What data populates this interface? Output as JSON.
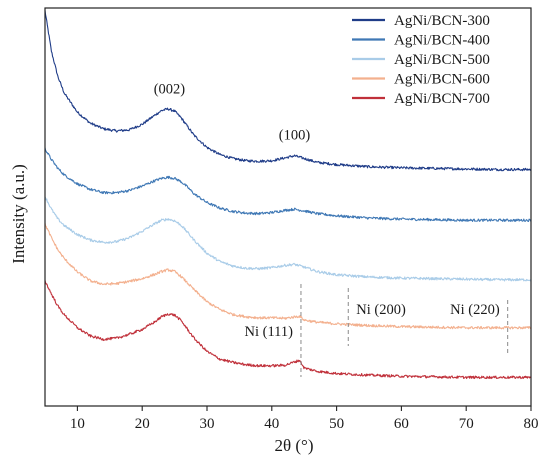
{
  "chart_data": {
    "type": "line",
    "xlabel": "2θ (°)",
    "ylabel": "Intensity (a.u.)",
    "xlim": [
      5,
      80
    ],
    "xticks": [
      10,
      20,
      30,
      40,
      50,
      60,
      70,
      80
    ],
    "y_tick_labels": false,
    "grid": false,
    "legend_position": "top-right",
    "stacked_offset": true,
    "series": [
      {
        "name": "AgNi/BCN-300",
        "color": "#1f3c88",
        "offset": 4.0,
        "x": [
          5,
          6,
          7,
          8,
          10,
          12,
          14,
          16,
          18,
          20,
          22,
          23,
          24,
          25,
          26,
          27,
          28,
          30,
          32,
          34,
          36,
          38,
          40,
          42,
          43.5,
          45,
          47,
          50,
          55,
          60,
          65,
          70,
          75,
          80
        ],
        "y": [
          2.92,
          2.18,
          1.72,
          1.42,
          1.08,
          0.88,
          0.78,
          0.74,
          0.76,
          0.86,
          1.03,
          1.11,
          1.14,
          1.1,
          0.98,
          0.82,
          0.66,
          0.44,
          0.31,
          0.24,
          0.2,
          0.19,
          0.2,
          0.25,
          0.29,
          0.24,
          0.17,
          0.13,
          0.09,
          0.07,
          0.06,
          0.05,
          0.04,
          0.04
        ]
      },
      {
        "name": "AgNi/BCN-400",
        "color": "#3f78b5",
        "offset": 3.0,
        "x": [
          5,
          6,
          7,
          8,
          10,
          12,
          14,
          16,
          18,
          20,
          22,
          23,
          24,
          25,
          26,
          27,
          28,
          30,
          32,
          34,
          36,
          38,
          40,
          42,
          43.5,
          45,
          47,
          50,
          55,
          60,
          65,
          70,
          75,
          80
        ],
        "y": [
          1.42,
          1.22,
          1.06,
          0.94,
          0.78,
          0.68,
          0.62,
          0.62,
          0.66,
          0.74,
          0.84,
          0.88,
          0.9,
          0.88,
          0.82,
          0.72,
          0.6,
          0.44,
          0.34,
          0.28,
          0.25,
          0.24,
          0.26,
          0.3,
          0.32,
          0.29,
          0.24,
          0.2,
          0.16,
          0.14,
          0.13,
          0.12,
          0.12,
          0.12
        ]
      },
      {
        "name": "AgNi/BCN-500",
        "color": "#a9cce8",
        "offset": 2.0,
        "x": [
          5,
          6,
          7,
          8,
          10,
          12,
          14,
          16,
          18,
          20,
          22,
          23,
          24,
          25,
          26,
          27,
          28,
          30,
          32,
          34,
          36,
          38,
          40,
          42,
          43.5,
          45,
          47,
          50,
          55,
          60,
          65,
          70,
          75,
          80
        ],
        "y": [
          1.55,
          1.32,
          1.14,
          1.02,
          0.86,
          0.76,
          0.72,
          0.73,
          0.8,
          0.92,
          1.06,
          1.12,
          1.14,
          1.11,
          1.03,
          0.9,
          0.76,
          0.52,
          0.37,
          0.29,
          0.25,
          0.24,
          0.26,
          0.3,
          0.32,
          0.27,
          0.19,
          0.13,
          0.09,
          0.07,
          0.06,
          0.05,
          0.04,
          0.04
        ]
      },
      {
        "name": "AgNi/BCN-600",
        "color": "#f3b08e",
        "offset": 1.0,
        "x": [
          5,
          6,
          7,
          8,
          10,
          12,
          14,
          16,
          18,
          20,
          22,
          23,
          24,
          25,
          26,
          27,
          28,
          30,
          32,
          34,
          36,
          38,
          40,
          42,
          44.3,
          45,
          47,
          50,
          55,
          60,
          65,
          70,
          75,
          80
        ],
        "y": [
          2.05,
          1.8,
          1.58,
          1.42,
          1.18,
          1.02,
          0.96,
          0.97,
          1.01,
          1.06,
          1.14,
          1.19,
          1.22,
          1.19,
          1.1,
          0.98,
          0.86,
          0.64,
          0.5,
          0.41,
          0.37,
          0.35,
          0.35,
          0.34,
          0.38,
          0.31,
          0.27,
          0.24,
          0.21,
          0.19,
          0.18,
          0.17,
          0.17,
          0.17
        ]
      },
      {
        "name": "AgNi/BCN-700",
        "color": "#c0303a",
        "offset": 0.0,
        "x": [
          5,
          6,
          7,
          8,
          10,
          12,
          14,
          16,
          18,
          20,
          22,
          23,
          24,
          25,
          26,
          27,
          28,
          30,
          32,
          34,
          36,
          38,
          40,
          42,
          44.3,
          45,
          47,
          50,
          55,
          60,
          65,
          70,
          75,
          80
        ],
        "y": [
          2.02,
          1.78,
          1.56,
          1.4,
          1.17,
          1.02,
          0.96,
          0.98,
          1.05,
          1.14,
          1.28,
          1.37,
          1.42,
          1.4,
          1.3,
          1.14,
          0.98,
          0.74,
          0.6,
          0.54,
          0.5,
          0.48,
          0.48,
          0.49,
          0.58,
          0.44,
          0.38,
          0.34,
          0.31,
          0.29,
          0.28,
          0.27,
          0.27,
          0.27
        ]
      }
    ],
    "annotations": [
      {
        "text": "(002)",
        "x": 24.2,
        "series": "AgNi/BCN-300",
        "anchor": "peak"
      },
      {
        "text": "(100)",
        "x": 43.5,
        "series": "AgNi/BCN-300",
        "anchor": "peak"
      }
    ],
    "reference_lines": [
      {
        "label": "Ni (111)",
        "x": 44.5,
        "label_side": "left"
      },
      {
        "label": "Ni (200)",
        "x": 51.8,
        "label_side": "right"
      },
      {
        "label": "Ni (220)",
        "x": 76.4,
        "label_side": "left"
      }
    ]
  }
}
